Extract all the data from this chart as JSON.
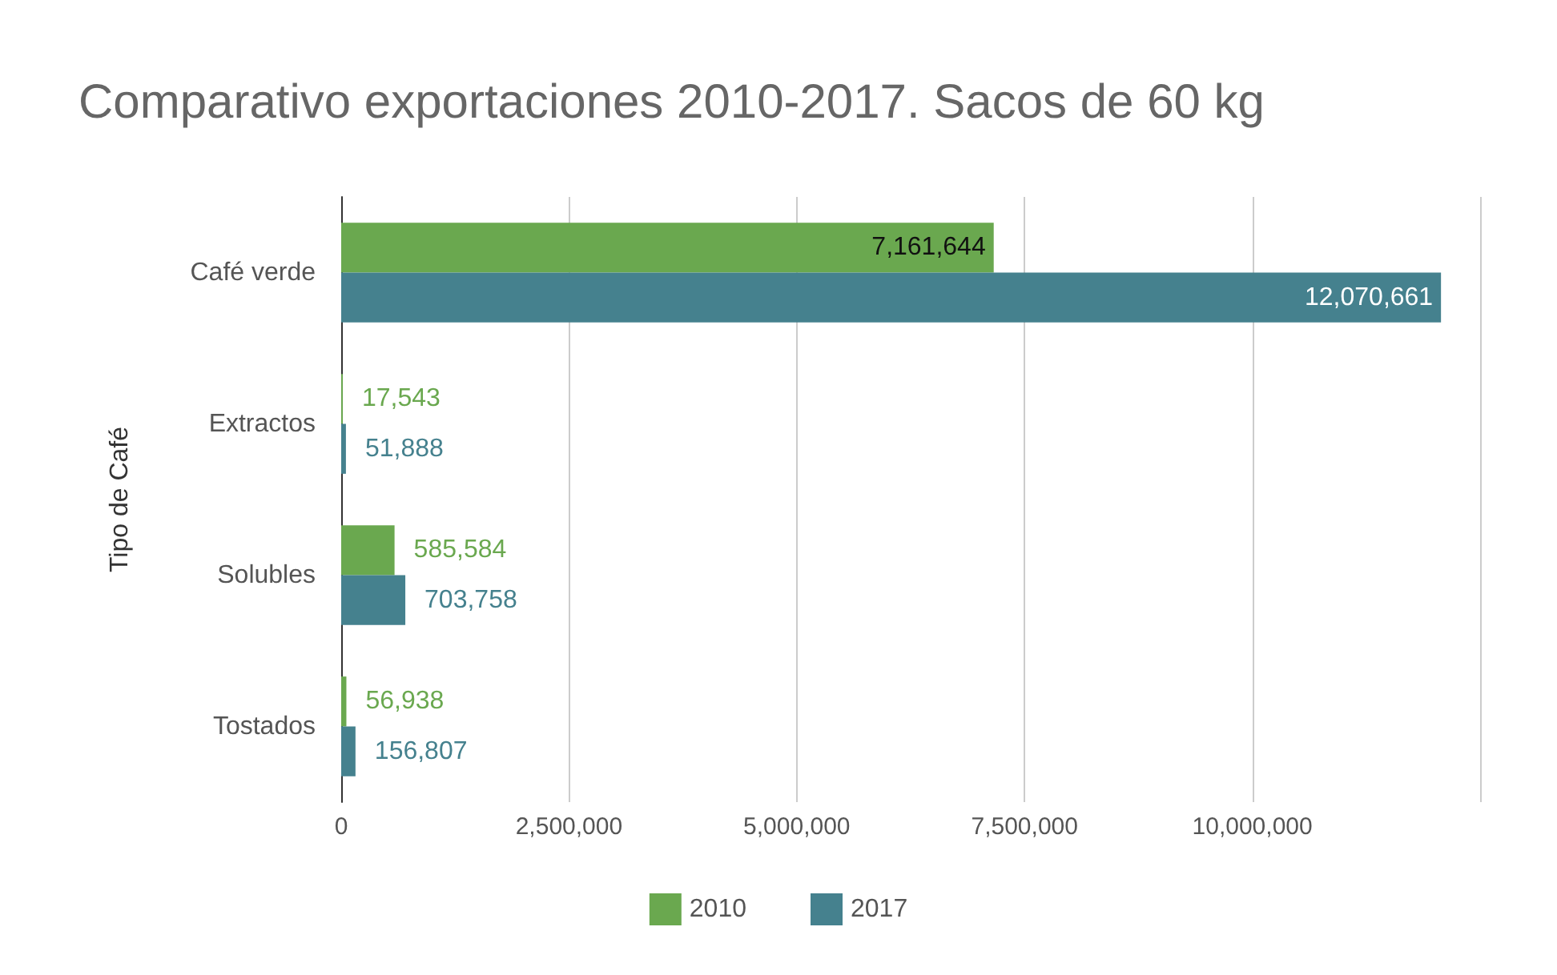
{
  "chart_data": {
    "type": "bar",
    "orientation": "horizontal",
    "title": "Comparativo exportaciones 2010-2017. Sacos de 60 kg",
    "ylabel": "Tipo de Café",
    "categories": [
      "Café verde",
      "Extractos",
      "Solubles",
      "Tostados"
    ],
    "series": [
      {
        "name": "2010",
        "color": "#6aa84f",
        "values": [
          7161644,
          17543,
          585584,
          56938
        ],
        "value_labels": [
          "7,161,644",
          "17,543",
          "585,584",
          "56,938"
        ]
      },
      {
        "name": "2017",
        "color": "#45818e",
        "values": [
          12070661,
          51888,
          703758,
          156807
        ],
        "value_labels": [
          "12,070,661",
          "51,888",
          "703,758",
          "156,807"
        ]
      }
    ],
    "xlim": [
      0,
      12500000
    ],
    "xticks": [
      0,
      {
        "value": 2500000,
        "label": "2,500,000"
      },
      {
        "value": 5000000,
        "label": "5,000,000"
      },
      {
        "value": 7500000,
        "label": "7,500,000"
      },
      {
        "value": 10000000,
        "label": "10,000,000"
      },
      {
        "value": 12500000,
        "label": null
      }
    ],
    "grid": "x",
    "legend": "bottom"
  }
}
